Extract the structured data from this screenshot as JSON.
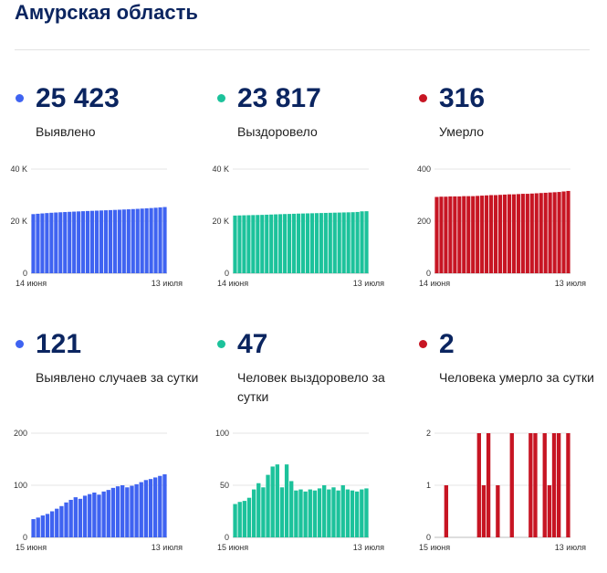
{
  "page": {
    "title": "Амурская область"
  },
  "panels": [
    {
      "id": "p1",
      "value": "25 423",
      "label": "Выявлено",
      "color": "#3f63f1"
    },
    {
      "id": "p2",
      "value": "23 817",
      "label": "Выздоровело",
      "color": "#1cc29b"
    },
    {
      "id": "p3",
      "value": "316",
      "label": "Умерло",
      "color": "#c71523"
    },
    {
      "id": "p4",
      "value": "121",
      "label": "Выявлено случаев за сутки",
      "color": "#3f63f1"
    },
    {
      "id": "p5",
      "value": "47",
      "label": "Человек выздоровело за сутки",
      "color": "#1cc29b"
    },
    {
      "id": "p6",
      "value": "2",
      "label": "Человека умерло за сутки",
      "color": "#c71523"
    }
  ],
  "chart_data": [
    {
      "panel": "p1",
      "type": "bar",
      "color": "#3f63f1",
      "ylim": [
        0,
        40000
      ],
      "yticks": [
        {
          "value": 0,
          "label": "0"
        },
        {
          "value": 20000,
          "label": "20 K"
        },
        {
          "value": 40000,
          "label": "40 K"
        }
      ],
      "xlabel_start": "14 июня",
      "xlabel_end": "13 июля",
      "values": [
        22700,
        22840,
        22970,
        23100,
        23220,
        23320,
        23410,
        23500,
        23580,
        23660,
        23740,
        23820,
        23900,
        23970,
        24040,
        24110,
        24180,
        24250,
        24320,
        24390,
        24470,
        24550,
        24640,
        24730,
        24830,
        24930,
        25030,
        25150,
        25300,
        25423
      ]
    },
    {
      "panel": "p2",
      "type": "bar",
      "color": "#1cc29b",
      "ylim": [
        0,
        40000
      ],
      "yticks": [
        {
          "value": 0,
          "label": "0"
        },
        {
          "value": 20000,
          "label": "20 K"
        },
        {
          "value": 40000,
          "label": "40 K"
        }
      ],
      "xlabel_start": "14 июня",
      "xlabel_end": "13 июля",
      "values": [
        22150,
        22200,
        22250,
        22290,
        22330,
        22370,
        22410,
        22480,
        22540,
        22610,
        22670,
        22730,
        22770,
        22840,
        22900,
        22940,
        22990,
        23030,
        23080,
        23120,
        23170,
        23210,
        23260,
        23300,
        23350,
        23390,
        23440,
        23530,
        23770,
        23817
      ]
    },
    {
      "panel": "p3",
      "type": "bar",
      "color": "#c71523",
      "ylim": [
        0,
        400
      ],
      "yticks": [
        {
          "value": 0,
          "label": "0"
        },
        {
          "value": 200,
          "label": "200"
        },
        {
          "value": 400,
          "label": "400"
        }
      ],
      "xlabel_start": "14 июня",
      "xlabel_end": "13 июля",
      "values": [
        293,
        294,
        294,
        295,
        295,
        295,
        296,
        296,
        296,
        297,
        298,
        299,
        300,
        300,
        301,
        302,
        303,
        303,
        304,
        305,
        305,
        306,
        307,
        308,
        309,
        310,
        311,
        312,
        314,
        316
      ]
    },
    {
      "panel": "p4",
      "type": "bar",
      "color": "#3f63f1",
      "ylim": [
        0,
        200
      ],
      "yticks": [
        {
          "value": 0,
          "label": "0"
        },
        {
          "value": 100,
          "label": "100"
        },
        {
          "value": 200,
          "label": "200"
        }
      ],
      "xlabel_start": "15 июня",
      "xlabel_end": "13 июля",
      "values": [
        35,
        38,
        42,
        45,
        50,
        55,
        60,
        67,
        72,
        77,
        74,
        80,
        83,
        86,
        82,
        88,
        91,
        95,
        98,
        100,
        96,
        99,
        102,
        106,
        110,
        112,
        115,
        118,
        121
      ]
    },
    {
      "panel": "p5",
      "type": "bar",
      "color": "#1cc29b",
      "ylim": [
        0,
        100
      ],
      "yticks": [
        {
          "value": 0,
          "label": "0"
        },
        {
          "value": 50,
          "label": "50"
        },
        {
          "value": 100,
          "label": "100"
        }
      ],
      "xlabel_start": "15 июня",
      "xlabel_end": "13 июля",
      "values": [
        32,
        34,
        35,
        38,
        46,
        52,
        48,
        60,
        68,
        70,
        48,
        70,
        54,
        45,
        46,
        44,
        46,
        45,
        47,
        50,
        46,
        48,
        45,
        50,
        46,
        45,
        44,
        46,
        47
      ]
    },
    {
      "panel": "p6",
      "type": "bar",
      "color": "#c71523",
      "ylim": [
        0,
        2
      ],
      "yticks": [
        {
          "value": 0,
          "label": "0"
        },
        {
          "value": 1,
          "label": "1"
        },
        {
          "value": 2,
          "label": "2"
        }
      ],
      "xlabel_start": "15 июня",
      "xlabel_end": "13 июля",
      "values": [
        0,
        0,
        1,
        0,
        0,
        0,
        0,
        0,
        0,
        2,
        1,
        2,
        0,
        1,
        0,
        0,
        2,
        0,
        0,
        0,
        2,
        2,
        0,
        2,
        1,
        2,
        2,
        0,
        2
      ]
    }
  ]
}
